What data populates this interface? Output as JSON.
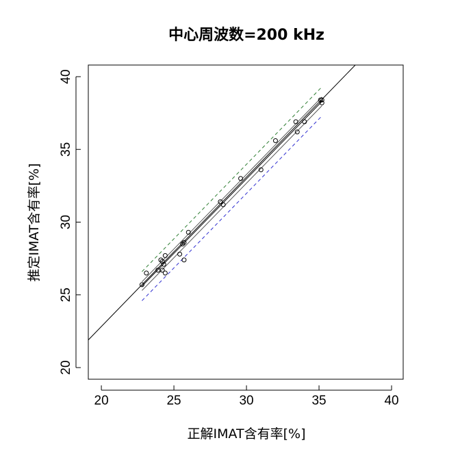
{
  "chart_data": {
    "type": "scatter",
    "title": "中心周波数=200 kHz",
    "xlabel": "正解IMAT含有率[%]",
    "ylabel": "推定IMAT含有率[%]",
    "xlim": [
      19.1,
      40.8
    ],
    "ylim": [
      19.2,
      40.8
    ],
    "xticks": [
      "20",
      "25",
      "30",
      "35",
      "40"
    ],
    "yticks": [
      "20",
      "25",
      "30",
      "35",
      "40"
    ],
    "grid": false,
    "legend": "none",
    "points": [
      {
        "x": 22.8,
        "y": 25.7
      },
      {
        "x": 23.1,
        "y": 26.5
      },
      {
        "x": 23.9,
        "y": 26.7
      },
      {
        "x": 24.1,
        "y": 27.4
      },
      {
        "x": 24.2,
        "y": 26.7
      },
      {
        "x": 24.2,
        "y": 27.3
      },
      {
        "x": 24.3,
        "y": 27.1
      },
      {
        "x": 24.4,
        "y": 26.5
      },
      {
        "x": 24.4,
        "y": 27.7
      },
      {
        "x": 25.4,
        "y": 27.8
      },
      {
        "x": 25.6,
        "y": 28.5
      },
      {
        "x": 25.7,
        "y": 27.4
      },
      {
        "x": 25.7,
        "y": 28.6
      },
      {
        "x": 26.0,
        "y": 29.3
      },
      {
        "x": 28.2,
        "y": 31.4
      },
      {
        "x": 28.4,
        "y": 31.2
      },
      {
        "x": 29.6,
        "y": 33.0
      },
      {
        "x": 31.0,
        "y": 33.6
      },
      {
        "x": 32.0,
        "y": 35.6
      },
      {
        "x": 33.4,
        "y": 36.9
      },
      {
        "x": 33.5,
        "y": 36.2
      },
      {
        "x": 34.0,
        "y": 36.9
      },
      {
        "x": 35.1,
        "y": 38.4
      },
      {
        "x": 35.2,
        "y": 38.2
      },
      {
        "x": 35.2,
        "y": 38.4
      }
    ],
    "lines": [
      {
        "role": "identity",
        "color": "#000000",
        "dash": false,
        "x1": 19.1,
        "y1": 21.9,
        "x2": 37.5,
        "y2": 40.8
      },
      {
        "role": "regression",
        "color": "#000000",
        "dash": false,
        "x1": 22.8,
        "y1": 25.6,
        "x2": 35.2,
        "y2": 38.3
      },
      {
        "role": "confidence-upper",
        "color": "#555555",
        "dash": false,
        "x1": 22.8,
        "y1": 25.9,
        "x2": 35.2,
        "y2": 38.6
      },
      {
        "role": "confidence-lower",
        "color": "#555555",
        "dash": false,
        "x1": 22.8,
        "y1": 25.3,
        "x2": 35.2,
        "y2": 38.0
      },
      {
        "role": "prediction-upper",
        "color": "#2e7d32",
        "dash": true,
        "x1": 22.8,
        "y1": 26.6,
        "x2": 35.2,
        "y2": 39.3
      },
      {
        "role": "prediction-lower",
        "color": "#2f2fd0",
        "dash": true,
        "x1": 22.8,
        "y1": 24.6,
        "x2": 35.2,
        "y2": 37.3
      }
    ]
  }
}
